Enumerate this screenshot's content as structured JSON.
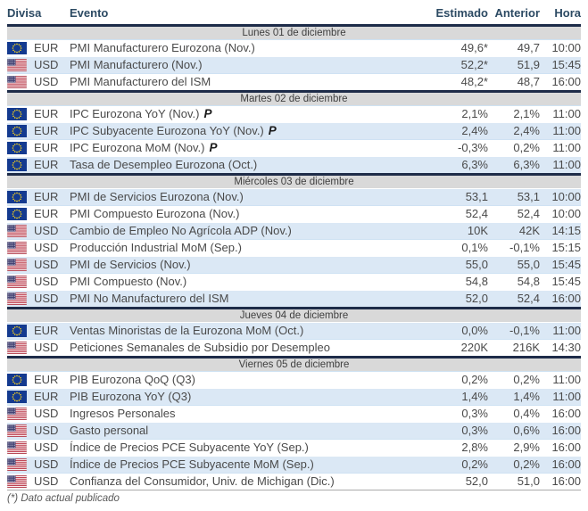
{
  "table": {
    "columns": {
      "divisa": "Divisa",
      "evento": "Evento",
      "estimado": "Estimado",
      "anterior": "Anterior",
      "hora": "Hora"
    },
    "sections": [
      {
        "day": "Lunes 01 de diciembre",
        "rows": [
          {
            "flag": "eu",
            "currency": "EUR",
            "event": "PMI Manufacturero Eurozona (Nov.)",
            "estimado": "49,6*",
            "anterior": "49,7",
            "hora": "10:00"
          },
          {
            "flag": "us",
            "currency": "USD",
            "event": "PMI Manufacturero (Nov.)",
            "estimado": "52,2*",
            "anterior": "51,9",
            "hora": "15:45"
          },
          {
            "flag": "us",
            "currency": "USD",
            "event": "PMI Manufacturero del ISM",
            "estimado": "48,2*",
            "anterior": "48,7",
            "hora": "16:00"
          }
        ]
      },
      {
        "day": "Martes 02 de diciembre",
        "rows": [
          {
            "flag": "eu",
            "currency": "EUR",
            "event": "IPC Eurozona YoY (Nov.)",
            "suffix": "P",
            "estimado": "2,1%",
            "anterior": "2,1%",
            "hora": "11:00"
          },
          {
            "flag": "eu",
            "currency": "EUR",
            "event": "IPC Subyacente Eurozona YoY (Nov.)",
            "suffix": "P",
            "estimado": "2,4%",
            "anterior": "2,4%",
            "hora": "11:00"
          },
          {
            "flag": "eu",
            "currency": "EUR",
            "event": "IPC Eurozona MoM (Nov.)",
            "suffix": "P",
            "estimado": "-0,3%",
            "anterior": "0,2%",
            "hora": "11:00"
          },
          {
            "flag": "eu",
            "currency": "EUR",
            "event": "Tasa de Desempleo Eurozona (Oct.)",
            "estimado": "6,3%",
            "anterior": "6,3%",
            "hora": "11:00"
          }
        ]
      },
      {
        "day": "Miércoles 03 de diciembre",
        "rows": [
          {
            "flag": "eu",
            "currency": "EUR",
            "event": "PMI de Servicios Eurozona (Nov.)",
            "estimado": "53,1",
            "anterior": "53,1",
            "hora": "10:00"
          },
          {
            "flag": "eu",
            "currency": "EUR",
            "event": "PMI Compuesto Eurozona (Nov.)",
            "estimado": "52,4",
            "anterior": "52,4",
            "hora": "10:00"
          },
          {
            "flag": "us",
            "currency": "USD",
            "event": "Cambio de Empleo No Agrícola ADP (Nov.)",
            "estimado": "10K",
            "anterior": "42K",
            "hora": "14:15"
          },
          {
            "flag": "us",
            "currency": "USD",
            "event": "Producción Industrial MoM (Sep.)",
            "estimado": "0,1%",
            "anterior": "-0,1%",
            "hora": "15:15"
          },
          {
            "flag": "us",
            "currency": "USD",
            "event": "PMI de Servicios (Nov.)",
            "estimado": "55,0",
            "anterior": "55,0",
            "hora": "15:45"
          },
          {
            "flag": "us",
            "currency": "USD",
            "event": "PMI Compuesto (Nov.)",
            "estimado": "54,8",
            "anterior": "54,8",
            "hora": "15:45"
          },
          {
            "flag": "us",
            "currency": "USD",
            "event": "PMI No Manufacturero del ISM",
            "estimado": "52,0",
            "anterior": "52,4",
            "hora": "16:00"
          }
        ]
      },
      {
        "day": "Jueves 04 de diciembre",
        "rows": [
          {
            "flag": "eu",
            "currency": "EUR",
            "event": "Ventas Minoristas de la Eurozona MoM (Oct.)",
            "estimado": "0,0%",
            "anterior": "-0,1%",
            "hora": "11:00"
          },
          {
            "flag": "us",
            "currency": "USD",
            "event": "Peticiones Semanales de Subsidio por Desempleo",
            "estimado": "220K",
            "anterior": "216K",
            "hora": "14:30"
          }
        ]
      },
      {
        "day": "Viernes 05 de diciembre",
        "rows": [
          {
            "flag": "eu",
            "currency": "EUR",
            "event": "PIB Eurozona QoQ (Q3)",
            "estimado": "0,2%",
            "anterior": "0,2%",
            "hora": "11:00"
          },
          {
            "flag": "eu",
            "currency": "EUR",
            "event": "PIB Eurozona YoY (Q3)",
            "estimado": "1,4%",
            "anterior": "1,4%",
            "hora": "11:00"
          },
          {
            "flag": "us",
            "currency": "USD",
            "event": "Ingresos Personales",
            "estimado": "0,3%",
            "anterior": "0,4%",
            "hora": "16:00"
          },
          {
            "flag": "us",
            "currency": "USD",
            "event": "Gasto personal",
            "estimado": "0,3%",
            "anterior": "0,6%",
            "hora": "16:00"
          },
          {
            "flag": "us",
            "currency": "USD",
            "event": "Índice de Precios PCE Subyacente YoY (Sep.)",
            "estimado": "2,8%",
            "anterior": "2,9%",
            "hora": "16:00"
          },
          {
            "flag": "us",
            "currency": "USD",
            "event": "Índice de Precios PCE Subyacente MoM (Sep.)",
            "estimado": "0,2%",
            "anterior": "0,2%",
            "hora": "16:00"
          },
          {
            "flag": "us",
            "currency": "USD",
            "event": "Confianza del Consumidor, Univ. de Michigan (Dic.)",
            "estimado": "52,0",
            "anterior": "51,0",
            "hora": "16:00"
          }
        ]
      }
    ],
    "footnote": "(*) Dato actual publicado"
  },
  "colors": {
    "header_text": "#2c4a63",
    "rule_dark": "#1e2c49",
    "day_separator_bg": "#d9d9d9",
    "row_alt_bg": "#dbe8f5",
    "row_text": "#4a4a4a",
    "anterior_text": "#7f7f7f",
    "footnote_text": "#595959",
    "eu_flag_blue": "#143a8f",
    "eu_flag_star": "#ffd617",
    "us_flag_red": "#b22234",
    "us_flag_blue": "#3c3b6e"
  }
}
